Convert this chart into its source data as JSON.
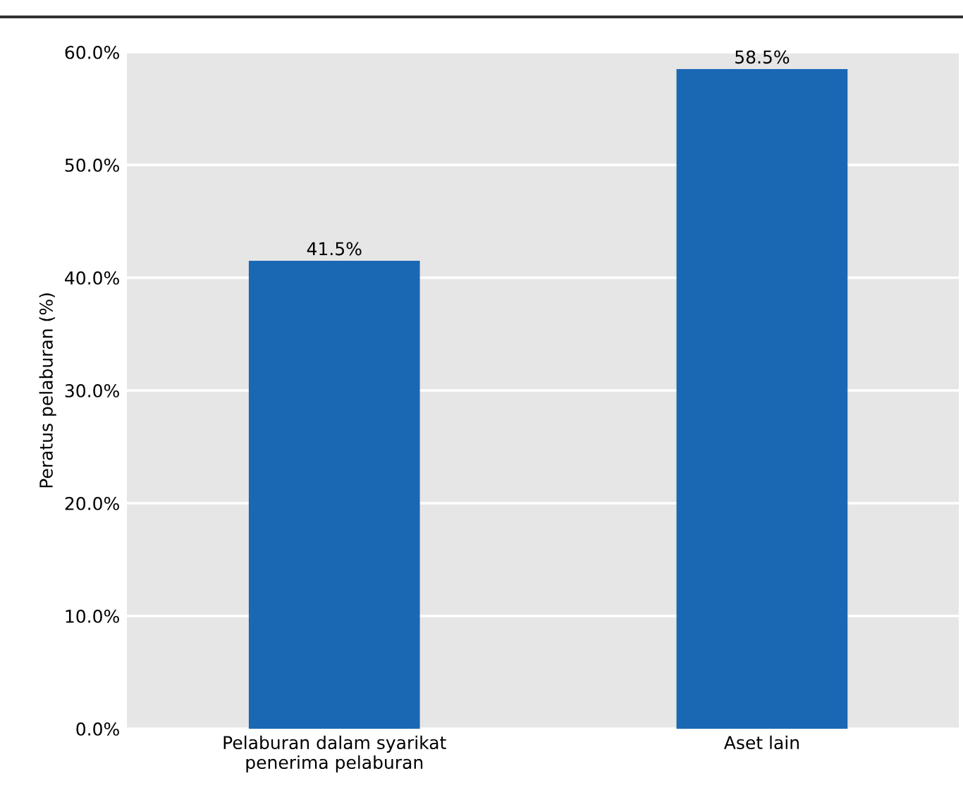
{
  "chart_data": {
    "type": "bar",
    "ylabel": "Peratus pelaburan (%)",
    "categories": [
      "Pelaburan dalam syarikat\npenerima pelaburan",
      "Aset lain"
    ],
    "values": [
      41.5,
      58.5
    ],
    "color": "#1a68b4",
    "value_labels": [
      "41.5%",
      "58.5%"
    ],
    "ylim": [
      0,
      60
    ],
    "yticks": [
      {
        "value": 0,
        "label": "0.0%"
      },
      {
        "value": 10,
        "label": "10.0%"
      },
      {
        "value": 20,
        "label": "20.0%"
      },
      {
        "value": 30,
        "label": "30.0%"
      },
      {
        "value": 40,
        "label": "40.0%"
      },
      {
        "value": 50,
        "label": "50.0%"
      },
      {
        "value": 60,
        "label": "60.0%"
      }
    ],
    "grid": "y"
  }
}
